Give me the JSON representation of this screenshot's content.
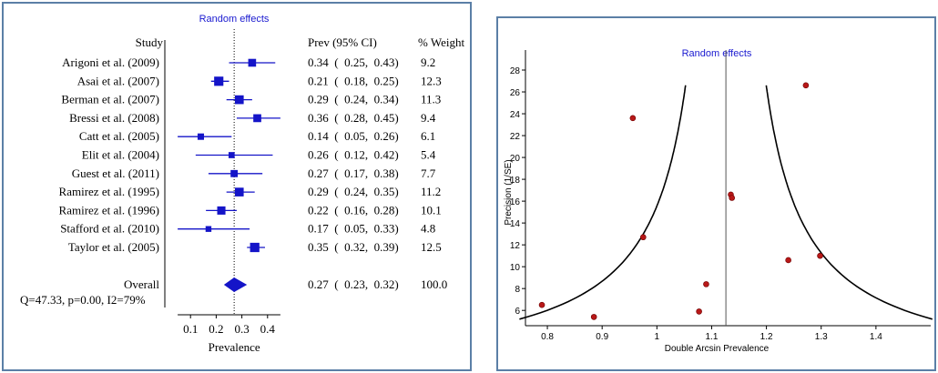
{
  "chart_data": [
    {
      "type": "forest",
      "title": "Random effects",
      "columns": {
        "study": "Study",
        "estimate": "Prev (95% CI)",
        "weight": "% Weight"
      },
      "studies": [
        {
          "name": "Arigoni et al. (2009)",
          "prev": 0.34,
          "lo": 0.25,
          "hi": 0.43,
          "ci_text": "0.34  (  0.25,  0.43)",
          "weight": "9.2"
        },
        {
          "name": "Asai et al. (2007)",
          "prev": 0.21,
          "lo": 0.18,
          "hi": 0.25,
          "ci_text": "0.21  (  0.18,  0.25)",
          "weight": "12.3"
        },
        {
          "name": "Berman et al. (2007)",
          "prev": 0.29,
          "lo": 0.24,
          "hi": 0.34,
          "ci_text": "0.29  (  0.24,  0.34)",
          "weight": "11.3"
        },
        {
          "name": "Bressi et al. (2008)",
          "prev": 0.36,
          "lo": 0.28,
          "hi": 0.45,
          "ci_text": "0.36  (  0.28,  0.45)",
          "weight": "9.4"
        },
        {
          "name": "Catt et al. (2005)",
          "prev": 0.14,
          "lo": 0.05,
          "hi": 0.26,
          "ci_text": "0.14  (  0.05,  0.26)",
          "weight": "6.1"
        },
        {
          "name": "Elit et al. (2004)",
          "prev": 0.26,
          "lo": 0.12,
          "hi": 0.42,
          "ci_text": "0.26  (  0.12,  0.42)",
          "weight": "5.4"
        },
        {
          "name": "Guest et al. (2011)",
          "prev": 0.27,
          "lo": 0.17,
          "hi": 0.38,
          "ci_text": "0.27  (  0.17,  0.38)",
          "weight": "7.7"
        },
        {
          "name": "Ramirez et al. (1995)",
          "prev": 0.29,
          "lo": 0.24,
          "hi": 0.35,
          "ci_text": "0.29  (  0.24,  0.35)",
          "weight": "11.2"
        },
        {
          "name": "Ramirez et al. (1996)",
          "prev": 0.22,
          "lo": 0.16,
          "hi": 0.28,
          "ci_text": "0.22  (  0.16,  0.28)",
          "weight": "10.1"
        },
        {
          "name": "Stafford et al. (2010)",
          "prev": 0.17,
          "lo": 0.05,
          "hi": 0.33,
          "ci_text": "0.17  (  0.05,  0.33)",
          "weight": "4.8"
        },
        {
          "name": "Taylor et al. (2005)",
          "prev": 0.35,
          "lo": 0.32,
          "hi": 0.39,
          "ci_text": "0.35  (  0.32,  0.39)",
          "weight": "12.5"
        }
      ],
      "overall": {
        "name": "Overall",
        "prev": 0.27,
        "lo": 0.23,
        "hi": 0.32,
        "ci_text": "0.27  (  0.23,  0.32)",
        "weight": "100.0"
      },
      "heterogeneity": "Q=47.33, p=0.00, I2=79%",
      "xlabel": "Prevalence",
      "xticks": [
        0.1,
        0.2,
        0.3,
        0.4
      ],
      "xtick_labels": [
        "0.1",
        "0.2",
        "0.3",
        "0.4"
      ],
      "xlim": [
        0.0,
        0.5
      ],
      "colors": {
        "marker": "#1414c8",
        "title": "#1a1ad0",
        "text": "#000000"
      }
    },
    {
      "type": "scatter",
      "title": "Random effects",
      "xlabel": "Double Arcsin Prevalence",
      "ylabel": "Precision (1/SE)",
      "xlim": [
        0.76,
        1.5
      ],
      "ylim": [
        4.6,
        29
      ],
      "xticks": [
        0.8,
        0.9,
        1.0,
        1.1,
        1.2,
        1.3,
        1.4
      ],
      "xtick_labels": [
        "0.8",
        "0.9",
        "1",
        "1.1",
        "1.2",
        "1.3",
        "1.4"
      ],
      "yticks": [
        6,
        8,
        10,
        12,
        14,
        16,
        18,
        20,
        22,
        24,
        26,
        28
      ],
      "ytick_labels": [
        "6",
        "8",
        "10",
        "12",
        "14",
        "16",
        "18",
        "20",
        "22",
        "24",
        "26",
        "28"
      ],
      "center_line": 1.126,
      "funnel_constant": 1.96,
      "points": [
        {
          "x": 0.79,
          "y": 6.5
        },
        {
          "x": 0.885,
          "y": 5.4
        },
        {
          "x": 0.956,
          "y": 23.6
        },
        {
          "x": 0.975,
          "y": 12.7
        },
        {
          "x": 1.077,
          "y": 5.9
        },
        {
          "x": 1.09,
          "y": 8.4
        },
        {
          "x": 1.135,
          "y": 16.6
        },
        {
          "x": 1.137,
          "y": 16.3
        },
        {
          "x": 1.24,
          "y": 10.6
        },
        {
          "x": 1.272,
          "y": 26.6
        },
        {
          "x": 1.298,
          "y": 11.0
        }
      ],
      "colors": {
        "point": "#b81818",
        "point_stroke": "#6e0000",
        "curve": "#000000",
        "title": "#1a1ad0"
      }
    }
  ]
}
